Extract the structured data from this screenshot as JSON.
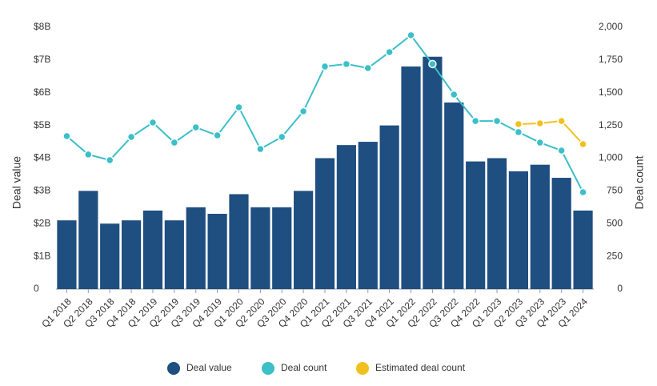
{
  "chart_data": {
    "type": "bar_line",
    "categories": [
      "Q1 2018",
      "Q2 2018",
      "Q3 2018",
      "Q4 2018",
      "Q1 2019",
      "Q2 2019",
      "Q3 2019",
      "Q4 2019",
      "Q1 2020",
      "Q2 2020",
      "Q3 2020",
      "Q4 2020",
      "Q1 2021",
      "Q2 2021",
      "Q3 2021",
      "Q4 2021",
      "Q1 2022",
      "Q2 2022",
      "Q3 2022",
      "Q4 2022",
      "Q1 2023",
      "Q2 2023",
      "Q3 2023",
      "Q4 2023",
      "Q1 2024"
    ],
    "series": [
      {
        "name": "Deal value",
        "color": "#1f4e80",
        "type": "bar",
        "axis": "y",
        "values": [
          2.1,
          3.0,
          2.0,
          2.1,
          2.4,
          2.1,
          2.5,
          2.3,
          2.9,
          2.5,
          2.5,
          3.0,
          4.0,
          4.4,
          4.5,
          5.0,
          6.8,
          7.1,
          5.7,
          3.9,
          4.0,
          3.6,
          3.8,
          3.4,
          2.4
        ]
      },
      {
        "name": "Deal count",
        "color": "#3bbfc8",
        "type": "line",
        "axis": "y2",
        "values": [
          1168,
          1028,
          985,
          1162,
          1272,
          1119,
          1235,
          1174,
          1388,
          1070,
          1162,
          1358,
          1700,
          1719,
          1688,
          1810,
          1939,
          1719,
          1486,
          1284,
          1284,
          1199,
          1119,
          1058,
          740
        ]
      },
      {
        "name": "Estimated deal count",
        "color": "#f2c01e",
        "type": "line",
        "axis": "y2",
        "values": [
          null,
          null,
          null,
          null,
          null,
          null,
          null,
          null,
          null,
          null,
          null,
          null,
          null,
          null,
          null,
          null,
          null,
          null,
          null,
          null,
          null,
          1260,
          1266,
          1284,
          1107
        ]
      }
    ],
    "ylabel": "Deal value",
    "y2label": "Deal count",
    "ylim": [
      0,
      8
    ],
    "yticks": [
      0,
      {
        "value": 1,
        "label": "$1B"
      },
      {
        "value": 2,
        "label": "$2B"
      },
      {
        "value": 3,
        "label": "$3B"
      },
      {
        "value": 4,
        "label": "$4B"
      },
      {
        "value": 5,
        "label": "$5B"
      },
      {
        "value": 6,
        "label": "$6B"
      },
      {
        "value": 7,
        "label": "$7B"
      },
      {
        "value": 8,
        "label": "$8B"
      }
    ],
    "y2lim": [
      0,
      2000
    ],
    "y2ticks": [
      0,
      250,
      500,
      750,
      {
        "value": 1000,
        "label": "1,000"
      },
      {
        "value": 1250,
        "label": "1,250"
      },
      {
        "value": 1500,
        "label": "1,500"
      },
      {
        "value": 1750,
        "label": "1,750"
      },
      {
        "value": 2000,
        "label": "2,000"
      }
    ],
    "legend": "bottom"
  }
}
